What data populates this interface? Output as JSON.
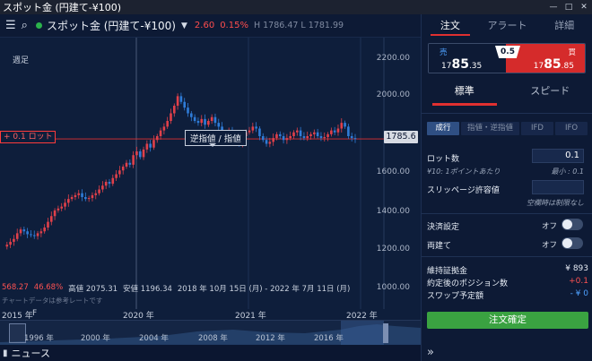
{
  "window": {
    "title": "スポット金 (円建て-¥100)",
    "minimize_icon": "minimize-icon",
    "maximize_icon": "maximize-icon",
    "close_icon": "close-icon"
  },
  "toolbar": {
    "menu_icon": "menu-icon",
    "search_icon": "search-icon",
    "symbol": "スポット金 (円建て-¥100)",
    "change": "2.60",
    "change_pct": "0.15%",
    "high_low": "H 1786.47 L 1781.99",
    "status_color": "#2bb24c",
    "down_color": "#ff4d4d"
  },
  "chart": {
    "period": "週足",
    "y_labels": [
      "2200.00",
      "2000.00",
      "1800.00",
      "1600.00",
      "1400.00",
      "1200.00",
      "1000.00"
    ],
    "current_price": "1785.6",
    "lot_label": "+ 0.1 ロット",
    "tooltip": "逆指値 / 指値",
    "stats": {
      "change": "568.27",
      "change_pct": "46.68%",
      "high": "高値 2075.31",
      "low": "安値 1196.34",
      "range": "2018 年 10月 15日 (月) - 2022 年 7月 11日 (月)"
    },
    "note": "チャートデータは参考レートです",
    "x_labels": [
      "2015 年",
      "F",
      "2020 年",
      "2021 年",
      "2022 年"
    ],
    "colors": {
      "up": "#e0404a",
      "down": "#2f7cd8",
      "bg": "#0e1e3b"
    }
  },
  "chart_data": {
    "type": "candlestick",
    "title": "スポット金 (円建て-¥100)",
    "timeframe": "週足",
    "ylim": [
      1000,
      2250
    ],
    "y_ticks": [
      2200,
      2000,
      1800,
      1600,
      1400,
      1200,
      1000
    ],
    "x_ticks": [
      "2020 年",
      "2021 年",
      "2022 年"
    ],
    "last_price": 1785.6,
    "high": 2075.31,
    "low": 1196.34,
    "change": 568.27,
    "change_pct": 46.68,
    "start": "2018 年 10月 15日 (月)",
    "end": "2022 年 7月 11日 (月)"
  },
  "navigator": {
    "years": [
      "1996 年",
      "2000 年",
      "2004 年",
      "2008 年",
      "2012 年",
      "2016 年"
    ]
  },
  "news": {
    "icon": "news-icon",
    "label": "ニュース"
  },
  "panel": {
    "tabs": [
      "注文",
      "アラート",
      "詳細"
    ],
    "sell": {
      "label": "売",
      "price_small": "17",
      "price_big": "85",
      "price_dec": ".35"
    },
    "buy": {
      "label": "買",
      "price_small": "17",
      "price_big": "85",
      "price_dec": ".85"
    },
    "spread": "0.5",
    "modes": [
      "標準",
      "スピード"
    ],
    "order_types": [
      "成行",
      "指値・逆指値",
      "IFD",
      "IFO"
    ],
    "lots": {
      "label": "ロット数",
      "value": "0.1",
      "per_point": "¥10: 1ポイントあたり",
      "min": "最小 : 0.1"
    },
    "slippage": {
      "label": "スリッページ許容値",
      "hint": "空欄時は制限なし"
    },
    "settlement": {
      "label": "決済設定",
      "state": "オフ"
    },
    "both": {
      "label": "両建て",
      "state": "オフ"
    },
    "summary": {
      "margin_label": "維持証拠金",
      "margin_value": "¥ 893",
      "position_label": "約定後のポジション数",
      "position_value": "+0.1",
      "swap_label": "スワップ予定額",
      "swap_value": "- ¥ 0"
    },
    "order_button": "注文確定",
    "expand_icon": "double-chevron-icon"
  }
}
